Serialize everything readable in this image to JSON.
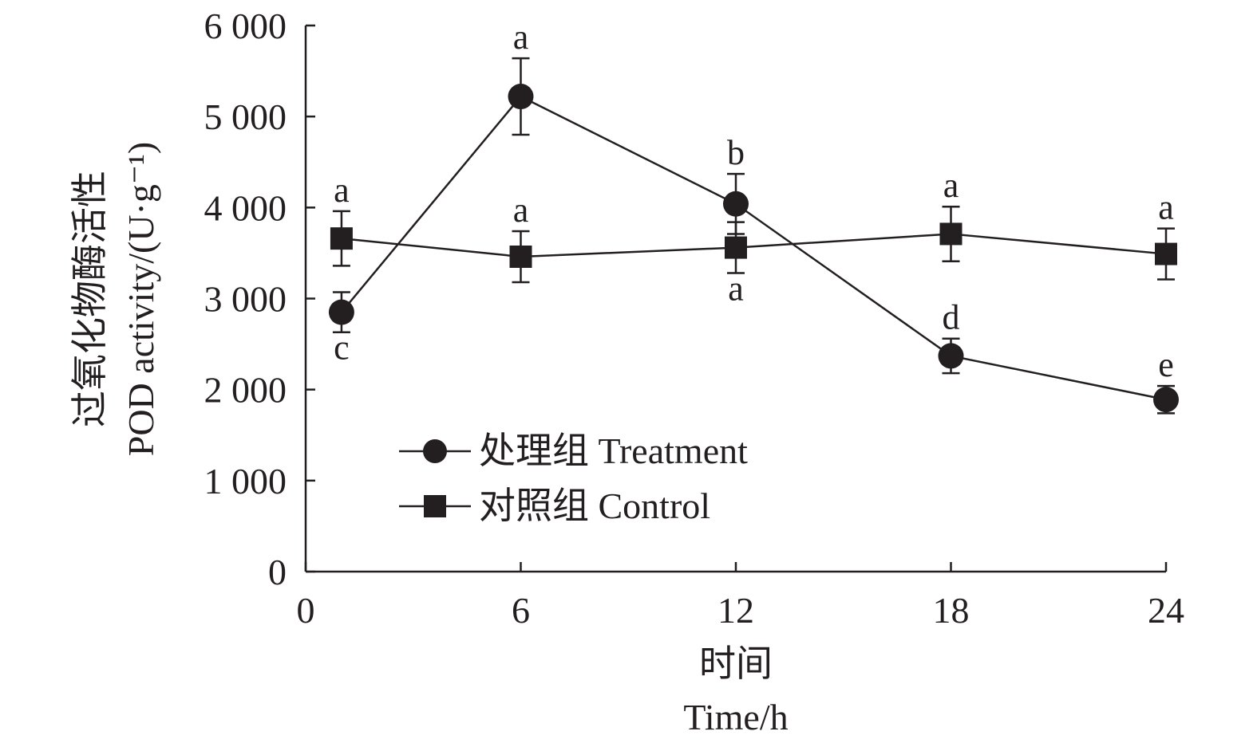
{
  "chart_data": {
    "type": "line",
    "title": "",
    "xlabel_cn": "时间",
    "xlabel": "Time/h",
    "ylabel_cn": "过氧化物酶活性",
    "ylabel": "POD activity/(U·g⁻¹)",
    "xlim": [
      0,
      24
    ],
    "ylim": [
      0,
      6000
    ],
    "xticks": [
      0,
      6,
      12,
      18,
      24
    ],
    "xtick_labels": [
      "0",
      "6",
      "12",
      "18",
      "24"
    ],
    "yticks": [
      0,
      1000,
      2000,
      3000,
      4000,
      5000,
      6000
    ],
    "ytick_labels": [
      "0",
      "1 000",
      "2 000",
      "3 000",
      "4 000",
      "5 000",
      "6 000"
    ],
    "grid": false,
    "legend_position": "bottom-left",
    "x": [
      1,
      6,
      12,
      18,
      24
    ],
    "series": [
      {
        "name": "处理组 Treatment",
        "marker": "circle",
        "values": [
          2850,
          5220,
          4040,
          2370,
          1890
        ],
        "errors": [
          220,
          420,
          330,
          190,
          150
        ],
        "letters": [
          "c",
          "a",
          "b",
          "d",
          "e"
        ],
        "letter_pos": [
          "below",
          "above",
          "above",
          "above",
          "above"
        ]
      },
      {
        "name": "对照组 Control",
        "marker": "square",
        "values": [
          3660,
          3460,
          3560,
          3710,
          3490
        ],
        "errors": [
          300,
          280,
          280,
          300,
          280
        ],
        "letters": [
          "a",
          "a",
          "a",
          "a",
          "a"
        ],
        "letter_pos": [
          "above",
          "above",
          "below",
          "above",
          "above"
        ]
      }
    ]
  }
}
